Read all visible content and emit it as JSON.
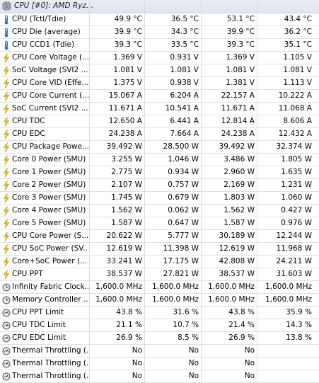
{
  "header": {
    "title": "CPU [#0]: AMD Ryz..."
  },
  "rows": [
    {
      "icon": "thermometer-icon",
      "name": "CPU (Tctl/Tdie)",
      "v": [
        "49.9 °C",
        "36.5 °C",
        "53.1 °C",
        "43.4 °C"
      ]
    },
    {
      "icon": "thermometer-icon",
      "name": "CPU Die (average)",
      "v": [
        "39.9 °C",
        "34.3 °C",
        "39.9 °C",
        "36.2 °C"
      ]
    },
    {
      "icon": "thermometer-icon",
      "name": "CPU CCD1 (Tdie)",
      "v": [
        "39.3 °C",
        "33.5 °C",
        "39.3 °C",
        "35.1 °C"
      ]
    },
    {
      "icon": "lightning-icon",
      "name": "CPU Core Voltage (...",
      "v": [
        "1.369 V",
        "0.931 V",
        "1.369 V",
        "1.105 V"
      ]
    },
    {
      "icon": "lightning-icon",
      "name": "SoC Voltage (SVI2 ...",
      "v": [
        "1.081 V",
        "1.081 V",
        "1.081 V",
        "1.081 V"
      ]
    },
    {
      "icon": "lightning-icon",
      "name": "CPU Core VID (Effe...",
      "v": [
        "1.375 V",
        "0.938 V",
        "1.381 V",
        "1.113 V"
      ]
    },
    {
      "icon": "lightning-icon",
      "name": "CPU Core Current (...",
      "v": [
        "15.067 A",
        "6.204 A",
        "22.157 A",
        "10.222 A"
      ]
    },
    {
      "icon": "lightning-icon",
      "name": "SoC Current (SVI2 ...",
      "v": [
        "11.671 A",
        "10.541 A",
        "11.671 A",
        "11.068 A"
      ]
    },
    {
      "icon": "lightning-icon",
      "name": "CPU TDC",
      "v": [
        "12.650 A",
        "6.441 A",
        "12.814 A",
        "8.606 A"
      ]
    },
    {
      "icon": "lightning-icon",
      "name": "CPU EDC",
      "v": [
        "24.238 A",
        "7.664 A",
        "24.238 A",
        "12.432 A"
      ]
    },
    {
      "icon": "lightning-icon",
      "name": "CPU Package Powe...",
      "v": [
        "39.492 W",
        "28.500 W",
        "39.492 W",
        "32.374 W"
      ]
    },
    {
      "icon": "lightning-icon",
      "name": "Core 0 Power (SMU)",
      "v": [
        "3.255 W",
        "1.046 W",
        "3.486 W",
        "1.805 W"
      ]
    },
    {
      "icon": "lightning-icon",
      "name": "Core 1 Power (SMU)",
      "v": [
        "2.775 W",
        "0.934 W",
        "2.960 W",
        "1.635 W"
      ]
    },
    {
      "icon": "lightning-icon",
      "name": "Core 2 Power (SMU)",
      "v": [
        "2.107 W",
        "0.757 W",
        "2.169 W",
        "1.231 W"
      ]
    },
    {
      "icon": "lightning-icon",
      "name": "Core 3 Power (SMU)",
      "v": [
        "1.745 W",
        "0.679 W",
        "1.803 W",
        "1.060 W"
      ]
    },
    {
      "icon": "lightning-icon",
      "name": "Core 4 Power (SMU)",
      "v": [
        "1.562 W",
        "0.062 W",
        "1.562 W",
        "0.427 W"
      ]
    },
    {
      "icon": "lightning-icon",
      "name": "Core 5 Power (SMU)",
      "v": [
        "1.587 W",
        "0.647 W",
        "1.587 W",
        "0.976 W"
      ]
    },
    {
      "icon": "lightning-icon",
      "name": "CPU Core Power (S...",
      "v": [
        "20.622 W",
        "5.777 W",
        "30.189 W",
        "12.244 W"
      ]
    },
    {
      "icon": "lightning-icon",
      "name": "CPU SoC Power (SV...",
      "v": [
        "12.619 W",
        "11.398 W",
        "12.619 W",
        "11.968 W"
      ]
    },
    {
      "icon": "lightning-icon",
      "name": "Core+SoC Power (...",
      "v": [
        "33.241 W",
        "17.175 W",
        "42.808 W",
        "24.211 W"
      ]
    },
    {
      "icon": "lightning-icon",
      "name": "CPU PPT",
      "v": [
        "38.537 W",
        "27.821 W",
        "38.537 W",
        "31.603 W"
      ]
    },
    {
      "icon": "clock-icon",
      "name": "Infinity Fabric Clock...",
      "v": [
        "1,600.0 MHz",
        "1,600.0 MHz",
        "1,600.0 MHz",
        "1,600.0 MHz"
      ]
    },
    {
      "icon": "clock-icon",
      "name": "Memory Controller ...",
      "v": [
        "1,600.0 MHz",
        "1,600.0 MHz",
        "1,600.0 MHz",
        "1,600.0 MHz"
      ]
    },
    {
      "icon": "gauge-icon",
      "name": "CPU PPT Limit",
      "v": [
        "43.8 %",
        "31.6 %",
        "43.8 %",
        "35.9 %"
      ]
    },
    {
      "icon": "gauge-icon",
      "name": "CPU TDC Limit",
      "v": [
        "21.1 %",
        "10.7 %",
        "21.4 %",
        "14.3 %"
      ]
    },
    {
      "icon": "gauge-icon",
      "name": "CPU EDC Limit",
      "v": [
        "26.9 %",
        "8.5 %",
        "26.9 %",
        "13.8 %"
      ]
    },
    {
      "icon": "gauge-icon",
      "name": "Thermal Throttling (...",
      "v": [
        "No",
        "No",
        "No",
        ""
      ]
    },
    {
      "icon": "gauge-icon",
      "name": "Thermal Throttling (...",
      "v": [
        "No",
        "No",
        "No",
        ""
      ]
    },
    {
      "icon": "gauge-icon",
      "name": "Thermal Throttling (...",
      "v": [
        "No",
        "No",
        "No",
        ""
      ]
    }
  ]
}
